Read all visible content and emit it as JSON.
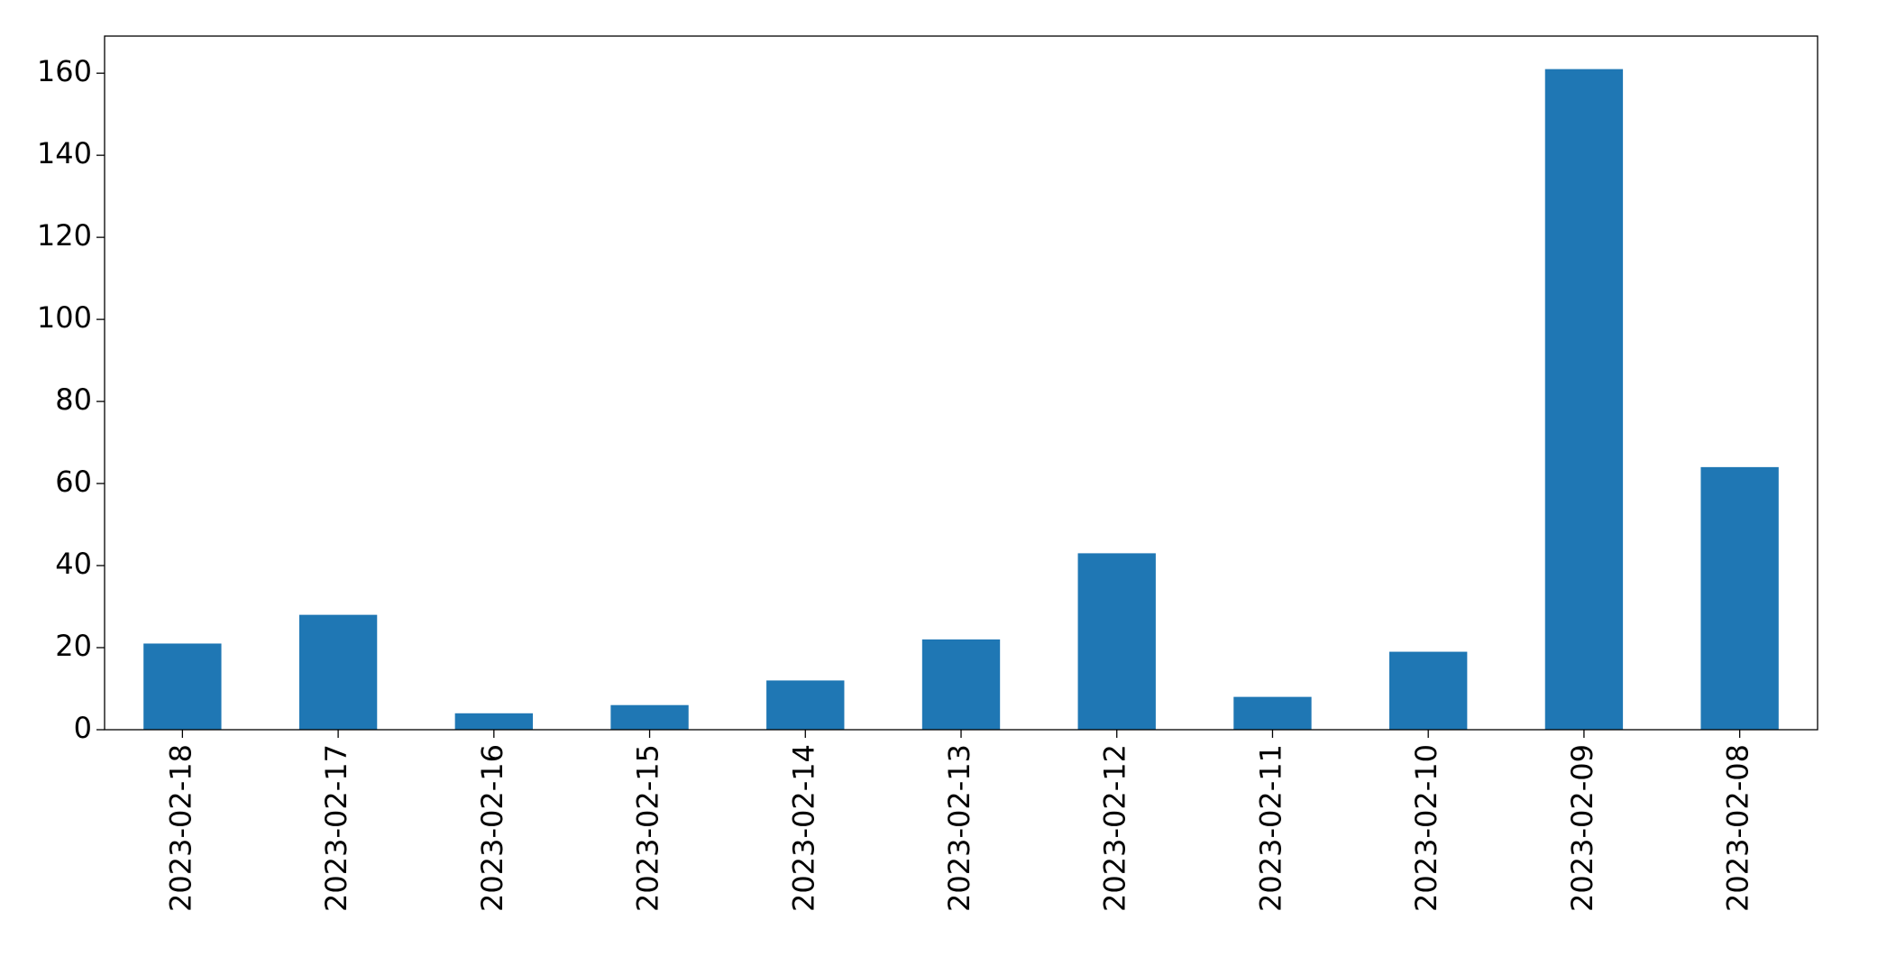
{
  "chart_data": {
    "type": "bar",
    "categories": [
      "2023-02-18",
      "2023-02-17",
      "2023-02-16",
      "2023-02-15",
      "2023-02-14",
      "2023-02-13",
      "2023-02-12",
      "2023-02-11",
      "2023-02-10",
      "2023-02-09",
      "2023-02-08"
    ],
    "values": [
      21,
      28,
      4,
      6,
      12,
      22,
      43,
      8,
      19,
      161,
      64
    ],
    "color": "#1f77b4",
    "ylim": [
      0,
      169.05
    ],
    "yticks": [
      0,
      20,
      40,
      60,
      80,
      100,
      120,
      140,
      160
    ],
    "grid": false
  }
}
